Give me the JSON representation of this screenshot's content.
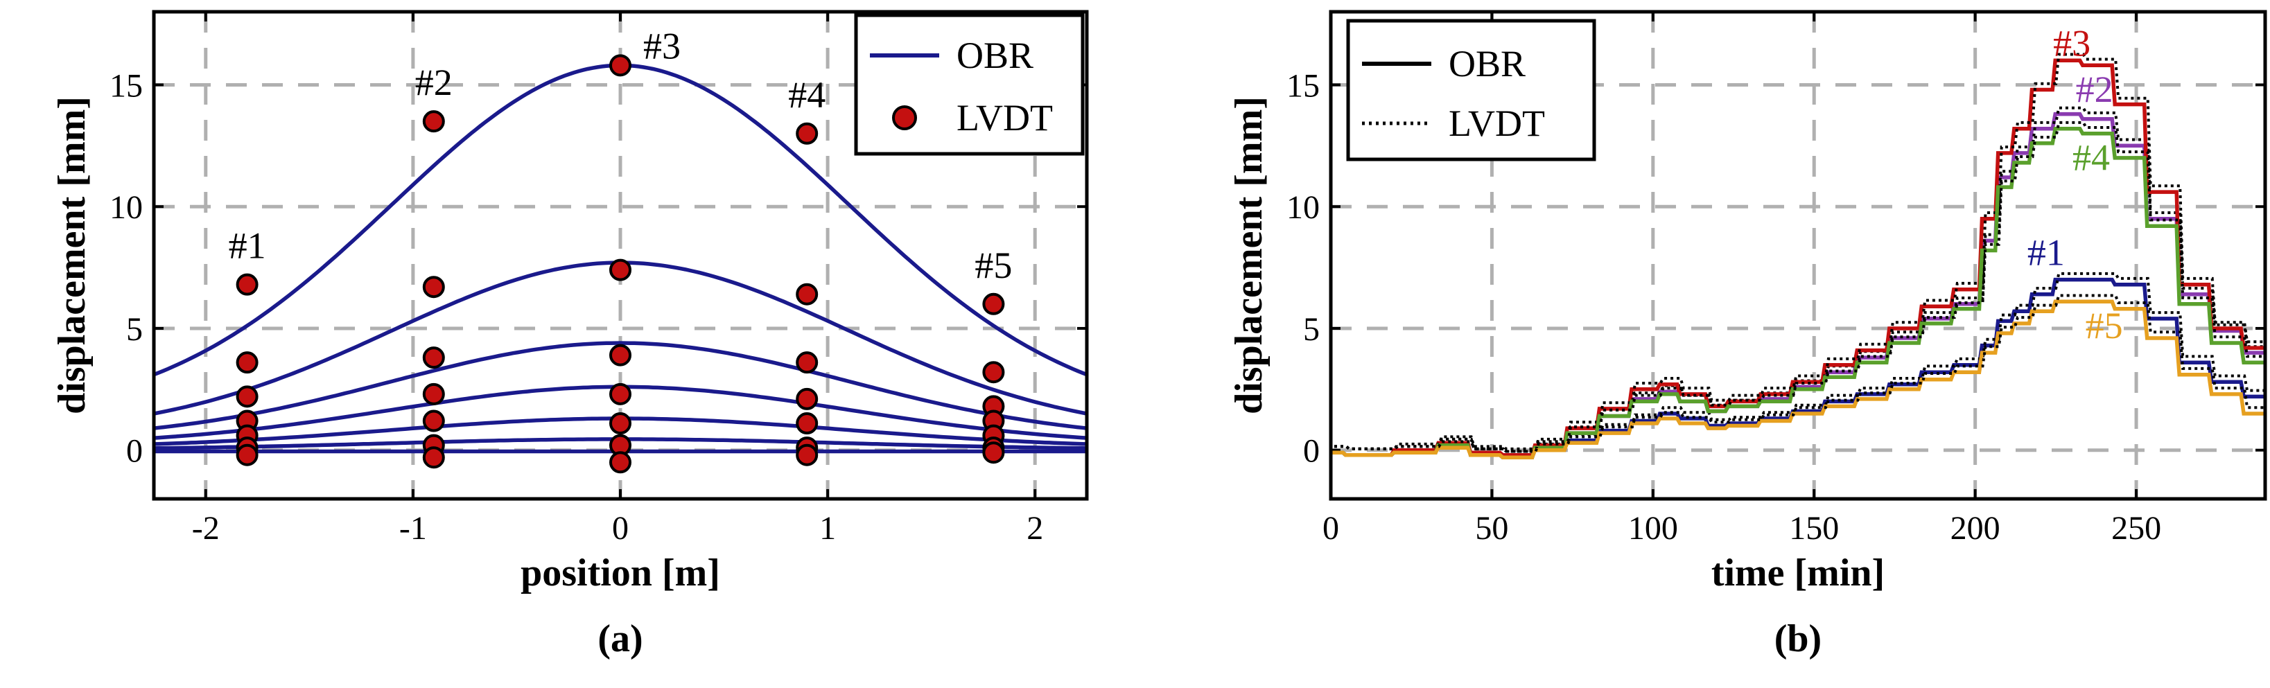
{
  "chart_data": [
    {
      "type": "line",
      "panel_label": "(a)",
      "xlabel": "position [m]",
      "ylabel": "displacement [mm]",
      "xlim": [
        -2.25,
        2.25
      ],
      "ylim": [
        -2,
        18
      ],
      "xticks": [
        -2,
        -1,
        0,
        1,
        2
      ],
      "yticks": [
        0,
        5,
        10,
        15
      ],
      "grid": true,
      "line_color": "#1a1a8c",
      "marker_color": "#c41010",
      "legend": {
        "position": "top-right",
        "entries": [
          "OBR",
          "LVDT"
        ]
      },
      "sensor_positions": [
        -1.8,
        -0.9,
        0,
        0.9,
        1.8
      ],
      "sensor_labels": [
        "#1",
        "#2",
        "#3",
        "#4",
        "#5"
      ],
      "series": [
        {
          "name": "OBR",
          "peak": 15.8,
          "edge": 3.1
        },
        {
          "name": "OBR",
          "peak": 7.7,
          "edge": 1.5
        },
        {
          "name": "OBR",
          "peak": 4.4,
          "edge": 0.9
        },
        {
          "name": "OBR",
          "peak": 2.6,
          "edge": 0.5
        },
        {
          "name": "OBR",
          "peak": 1.3,
          "edge": 0.25
        },
        {
          "name": "OBR",
          "peak": 0.45,
          "edge": 0.08
        },
        {
          "name": "OBR",
          "peak": -0.05,
          "edge": -0.05
        }
      ],
      "lvdt_points": [
        [
          6.8,
          13.5,
          15.8,
          13.0,
          6.0
        ],
        [
          3.6,
          6.7,
          7.4,
          6.4,
          3.2
        ],
        [
          2.2,
          3.8,
          3.9,
          3.6,
          1.8
        ],
        [
          1.2,
          2.3,
          2.3,
          2.1,
          1.2
        ],
        [
          0.6,
          1.2,
          1.1,
          1.1,
          0.6
        ],
        [
          0.1,
          0.2,
          0.2,
          0.1,
          0.1
        ],
        [
          -0.2,
          -0.3,
          -0.5,
          -0.2,
          -0.1
        ]
      ]
    },
    {
      "type": "line",
      "panel_label": "(b)",
      "xlabel": "time [min]",
      "ylabel": "displacement [mm]",
      "xlim": [
        0,
        290
      ],
      "ylim": [
        -2,
        18
      ],
      "xticks": [
        0,
        50,
        100,
        150,
        200,
        250
      ],
      "yticks": [
        0,
        5,
        10,
        15
      ],
      "grid": true,
      "legend": {
        "position": "top-left",
        "entries": [
          "OBR",
          "LVDT"
        ]
      },
      "series": [
        {
          "name": "#1",
          "color": "#1a1a8c",
          "x": [
            0,
            15,
            30,
            40,
            50,
            60,
            70,
            80,
            90,
            100,
            105,
            115,
            120,
            130,
            140,
            150,
            160,
            170,
            180,
            190,
            200,
            205,
            210,
            215,
            222,
            230,
            240,
            250,
            260,
            270,
            280,
            290
          ],
          "y": [
            -0.1,
            -0.2,
            -0.1,
            0.2,
            -0.2,
            -0.3,
            0.0,
            0.4,
            0.8,
            1.2,
            1.5,
            1.3,
            1.0,
            1.1,
            1.3,
            1.6,
            2.0,
            2.3,
            2.7,
            3.2,
            3.5,
            4.3,
            5.3,
            5.7,
            6.4,
            7.0,
            7.0,
            6.8,
            5.4,
            3.6,
            2.8,
            2.2
          ]
        },
        {
          "name": "#2",
          "color": "#8a3bb0",
          "x": [
            0,
            15,
            30,
            40,
            50,
            60,
            70,
            80,
            90,
            100,
            105,
            115,
            120,
            130,
            140,
            150,
            160,
            170,
            180,
            190,
            200,
            205,
            210,
            215,
            222,
            230,
            240,
            250,
            260,
            270,
            280,
            290
          ],
          "y": [
            -0.1,
            -0.2,
            -0.1,
            0.2,
            -0.2,
            -0.3,
            0.1,
            0.7,
            1.4,
            2.1,
            2.4,
            2.0,
            1.6,
            1.8,
            2.1,
            2.6,
            3.2,
            3.8,
            4.6,
            5.4,
            6.0,
            8.6,
            11.2,
            12.2,
            13.2,
            13.8,
            13.6,
            12.5,
            9.5,
            6.4,
            4.9,
            4.0
          ]
        },
        {
          "name": "#3",
          "color": "#c41010",
          "x": [
            0,
            15,
            30,
            40,
            50,
            60,
            70,
            80,
            90,
            100,
            105,
            115,
            120,
            130,
            140,
            150,
            160,
            170,
            180,
            190,
            200,
            205,
            210,
            215,
            222,
            230,
            240,
            250,
            260,
            270,
            280,
            290
          ],
          "y": [
            -0.1,
            -0.2,
            0.0,
            0.3,
            -0.1,
            -0.2,
            0.2,
            0.9,
            1.7,
            2.5,
            2.7,
            2.3,
            1.8,
            2.0,
            2.3,
            2.8,
            3.5,
            4.1,
            5.0,
            5.9,
            6.6,
            9.5,
            12.2,
            13.2,
            14.8,
            16.0,
            15.8,
            14.2,
            10.6,
            6.8,
            5.0,
            4.2
          ]
        },
        {
          "name": "#4",
          "color": "#5aa02c",
          "x": [
            0,
            15,
            30,
            40,
            50,
            60,
            70,
            80,
            90,
            100,
            105,
            115,
            120,
            130,
            140,
            150,
            160,
            170,
            180,
            190,
            200,
            205,
            210,
            215,
            222,
            230,
            240,
            250,
            260,
            270,
            280,
            290
          ],
          "y": [
            -0.1,
            -0.2,
            -0.1,
            0.2,
            -0.2,
            -0.3,
            0.1,
            0.7,
            1.4,
            2.0,
            2.3,
            2.0,
            1.6,
            1.8,
            2.0,
            2.5,
            3.0,
            3.6,
            4.4,
            5.2,
            5.8,
            8.2,
            10.8,
            11.8,
            12.6,
            13.2,
            13.0,
            12.0,
            9.2,
            6.0,
            4.4,
            3.6
          ]
        },
        {
          "name": "#5",
          "color": "#e6a020",
          "x": [
            0,
            15,
            30,
            40,
            50,
            60,
            70,
            80,
            90,
            100,
            105,
            115,
            120,
            130,
            140,
            150,
            160,
            170,
            180,
            190,
            200,
            205,
            210,
            215,
            222,
            230,
            240,
            250,
            260,
            270,
            280,
            290
          ],
          "y": [
            -0.1,
            -0.2,
            -0.1,
            0.1,
            -0.2,
            -0.3,
            0.0,
            0.3,
            0.7,
            1.1,
            1.3,
            1.1,
            0.9,
            1.0,
            1.2,
            1.5,
            1.8,
            2.1,
            2.5,
            2.9,
            3.2,
            4.0,
            4.8,
            5.2,
            5.7,
            6.1,
            6.1,
            5.8,
            4.6,
            3.1,
            2.3,
            1.5
          ]
        }
      ],
      "annotations": [
        {
          "text": "#3",
          "x": 230,
          "y": 16.2,
          "color": "#c41010"
        },
        {
          "text": "#2",
          "x": 237,
          "y": 14.3,
          "color": "#8a3bb0"
        },
        {
          "text": "#4",
          "x": 236,
          "y": 11.5,
          "color": "#5aa02c"
        },
        {
          "text": "#1",
          "x": 222,
          "y": 7.6,
          "color": "#1a1a8c"
        },
        {
          "text": "#5",
          "x": 240,
          "y": 4.6,
          "color": "#e6a020"
        }
      ]
    }
  ]
}
